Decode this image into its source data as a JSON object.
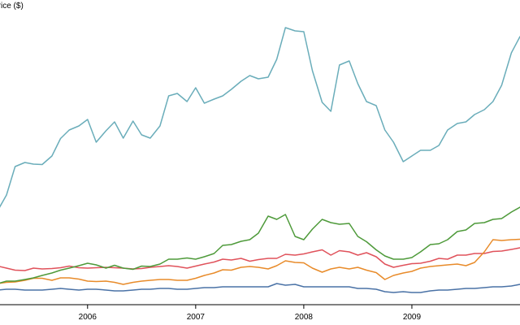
{
  "chart_data": {
    "type": "line",
    "ylabel": "Price ($)",
    "xlabel": "",
    "x_ticks": [
      "2006",
      "2007",
      "2008",
      "2009"
    ],
    "x_tick_values": [
      2006.0,
      2007.0,
      2008.0,
      2009.0
    ],
    "xlim": [
      2005.19,
      2010.0
    ],
    "ylim": [
      0,
      750
    ],
    "grid": false,
    "legend": "none",
    "x": [
      2005.17,
      2005.25,
      2005.33,
      2005.42,
      2005.5,
      2005.58,
      2005.67,
      2005.75,
      2005.83,
      2005.92,
      2006.0,
      2006.08,
      2006.17,
      2006.25,
      2006.33,
      2006.42,
      2006.5,
      2006.58,
      2006.67,
      2006.75,
      2006.83,
      2006.92,
      2007.0,
      2007.08,
      2007.17,
      2007.25,
      2007.33,
      2007.42,
      2007.5,
      2007.58,
      2007.67,
      2007.75,
      2007.83,
      2007.92,
      2008.0,
      2008.08,
      2008.17,
      2008.25,
      2008.33,
      2008.42,
      2008.5,
      2008.58,
      2008.67,
      2008.75,
      2008.83,
      2008.92,
      2009.0,
      2009.08,
      2009.17,
      2009.25,
      2009.33,
      2009.42,
      2009.5,
      2009.58,
      2009.67,
      2009.75,
      2009.83,
      2009.92,
      2010.0
    ],
    "series": [
      {
        "color": "#e0525b",
        "values": [
          95,
          90,
          85,
          84,
          90,
          88,
          89,
          91,
          95,
          91,
          90,
          91,
          92,
          91,
          90,
          88,
          89,
          92,
          94,
          96,
          94,
          90,
          95,
          100,
          105,
          112,
          110,
          114,
          107,
          111,
          114,
          114,
          124,
          122,
          125,
          130,
          135,
          122,
          133,
          130,
          122,
          128,
          118,
          100,
          92,
          97,
          101,
          102,
          107,
          114,
          112,
          122,
          122,
          126,
          126,
          131,
          132,
          136,
          140
        ]
      },
      {
        "color": "#e88b2a",
        "values": [
          52,
          55,
          56,
          60,
          65,
          65,
          60,
          66,
          66,
          63,
          58,
          57,
          58,
          55,
          50,
          55,
          58,
          60,
          62,
          62,
          60,
          60,
          65,
          72,
          78,
          86,
          85,
          92,
          94,
          92,
          88,
          96,
          108,
          104,
          103,
          90,
          80,
          88,
          92,
          88,
          92,
          85,
          79,
          62,
          72,
          78,
          82,
          90,
          94,
          96,
          98,
          100,
          96,
          104,
          130,
          160,
          158,
          160,
          161
        ]
      },
      {
        "color": "#4e9a3a",
        "values": [
          52,
          58,
          58,
          62,
          66,
          72,
          78,
          85,
          90,
          96,
          102,
          98,
          90,
          97,
          90,
          87,
          95,
          94,
          100,
          112,
          112,
          115,
          112,
          118,
          126,
          146,
          148,
          156,
          160,
          176,
          218,
          210,
          222,
          168,
          160,
          186,
          210,
          202,
          198,
          200,
          168,
          155,
          135,
          120,
          112,
          112,
          116,
          130,
          148,
          150,
          160,
          180,
          184,
          200,
          202,
          210,
          212,
          228,
          240
        ]
      },
      {
        "color": "#6aadba",
        "values": [
          232,
          270,
          340,
          350,
          346,
          345,
          366,
          409,
          430,
          440,
          456,
          400,
          428,
          450,
          410,
          452,
          418,
          410,
          440,
          514,
          520,
          500,
          534,
          496,
          506,
          514,
          530,
          550,
          564,
          556,
          560,
          604,
          682,
          674,
          672,
          576,
          498,
          476,
          590,
          600,
          544,
          500,
          490,
          430,
          400,
          352,
          366,
          380,
          380,
          392,
          430,
          446,
          450,
          468,
          480,
          500,
          540,
          620,
          660
        ]
      },
      {
        "color": "#4a72a6",
        "values": [
          36,
          38,
          38,
          36,
          36,
          36,
          38,
          40,
          38,
          36,
          38,
          38,
          36,
          34,
          34,
          36,
          38,
          38,
          40,
          40,
          38,
          38,
          40,
          42,
          42,
          44,
          44,
          44,
          44,
          44,
          44,
          52,
          48,
          50,
          44,
          44,
          44,
          44,
          44,
          44,
          40,
          40,
          38,
          32,
          30,
          32,
          30,
          30,
          34,
          36,
          36,
          38,
          40,
          40,
          42,
          44,
          44,
          46,
          50
        ]
      }
    ]
  }
}
